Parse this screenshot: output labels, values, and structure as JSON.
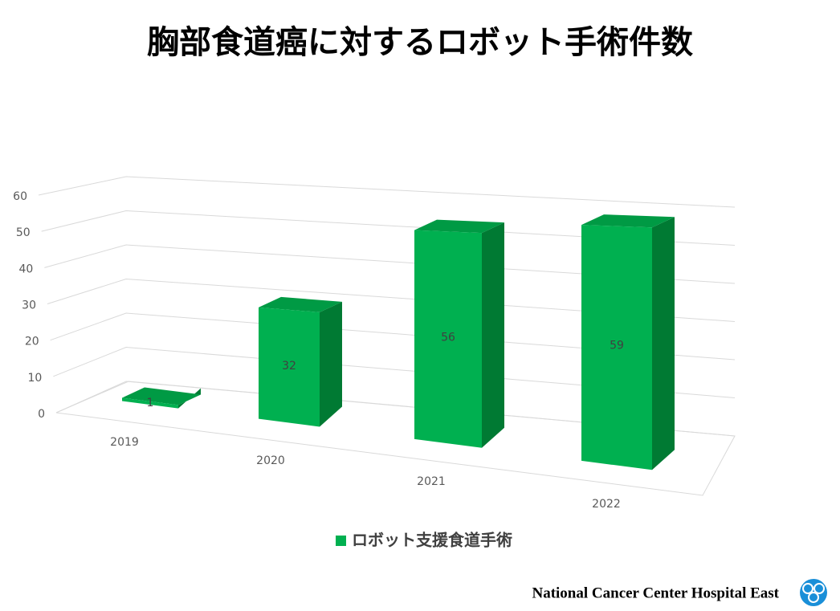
{
  "chart_data": {
    "type": "bar3d",
    "title": "胸部食道癌に対するロボット手術件数",
    "categories": [
      "2019",
      "2020",
      "2021",
      "2022"
    ],
    "series": [
      {
        "name": "ロボット支援食道手術",
        "color": "#00b050",
        "values": [
          1,
          32,
          56,
          59
        ]
      }
    ],
    "ylim": [
      0,
      60
    ],
    "yticks": [
      0,
      10,
      20,
      30,
      40,
      50,
      60
    ],
    "grid": true,
    "legend": "bottom"
  },
  "footer": "National Cancer Center Hospital East"
}
